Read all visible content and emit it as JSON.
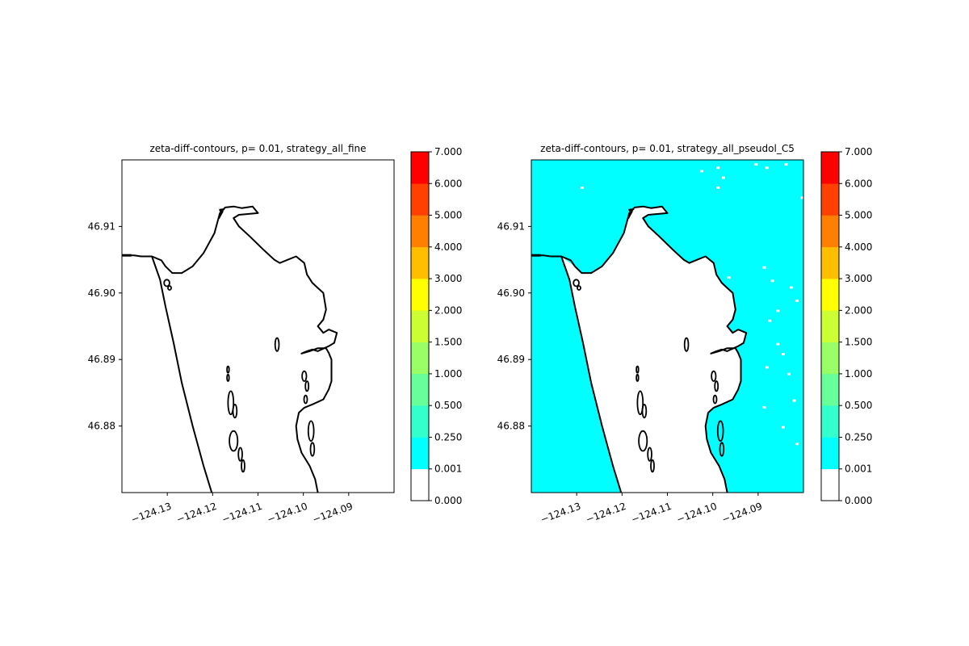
{
  "figure": {
    "panels": [
      {
        "title": "zeta-diff-contours, p= 0.01, strategy_all_fine",
        "variant": "fine"
      },
      {
        "title": "zeta-diff-contours, p= 0.01, strategy_all_pseudol_C5",
        "variant": "pseudo"
      }
    ]
  },
  "chart_data": {
    "type": "heatmap",
    "x_ticks": [
      -124.13,
      -124.12,
      -124.11,
      -124.1,
      -124.09
    ],
    "x_tick_labels": [
      "−124.13",
      "−124.12",
      "−124.11",
      "−124.10",
      "−124.09"
    ],
    "y_ticks": [
      46.88,
      46.89,
      46.9,
      46.91
    ],
    "y_tick_labels": [
      "46.88",
      "46.89",
      "46.90",
      "46.91"
    ],
    "xlim": [
      -124.14,
      -124.08
    ],
    "ylim": [
      46.87,
      46.92
    ],
    "colorbar": {
      "levels": [
        0.0,
        0.001,
        0.25,
        0.5,
        1.0,
        1.5,
        2.0,
        3.0,
        4.0,
        5.0,
        6.0,
        7.0
      ],
      "labels": [
        "0.000",
        "0.001",
        "0.250",
        "0.500",
        "1.000",
        "1.500",
        "2.000",
        "3.000",
        "4.000",
        "5.000",
        "6.000",
        "7.000"
      ],
      "colors": [
        "#ffffff",
        "#00ffff",
        "#33ffcc",
        "#66ff99",
        "#99ff66",
        "#ccff33",
        "#ffff00",
        "#ffbf00",
        "#ff8000",
        "#ff4000",
        "#ff0000"
      ]
    },
    "fill_level_index": 1,
    "coastline_color": "#000000"
  }
}
